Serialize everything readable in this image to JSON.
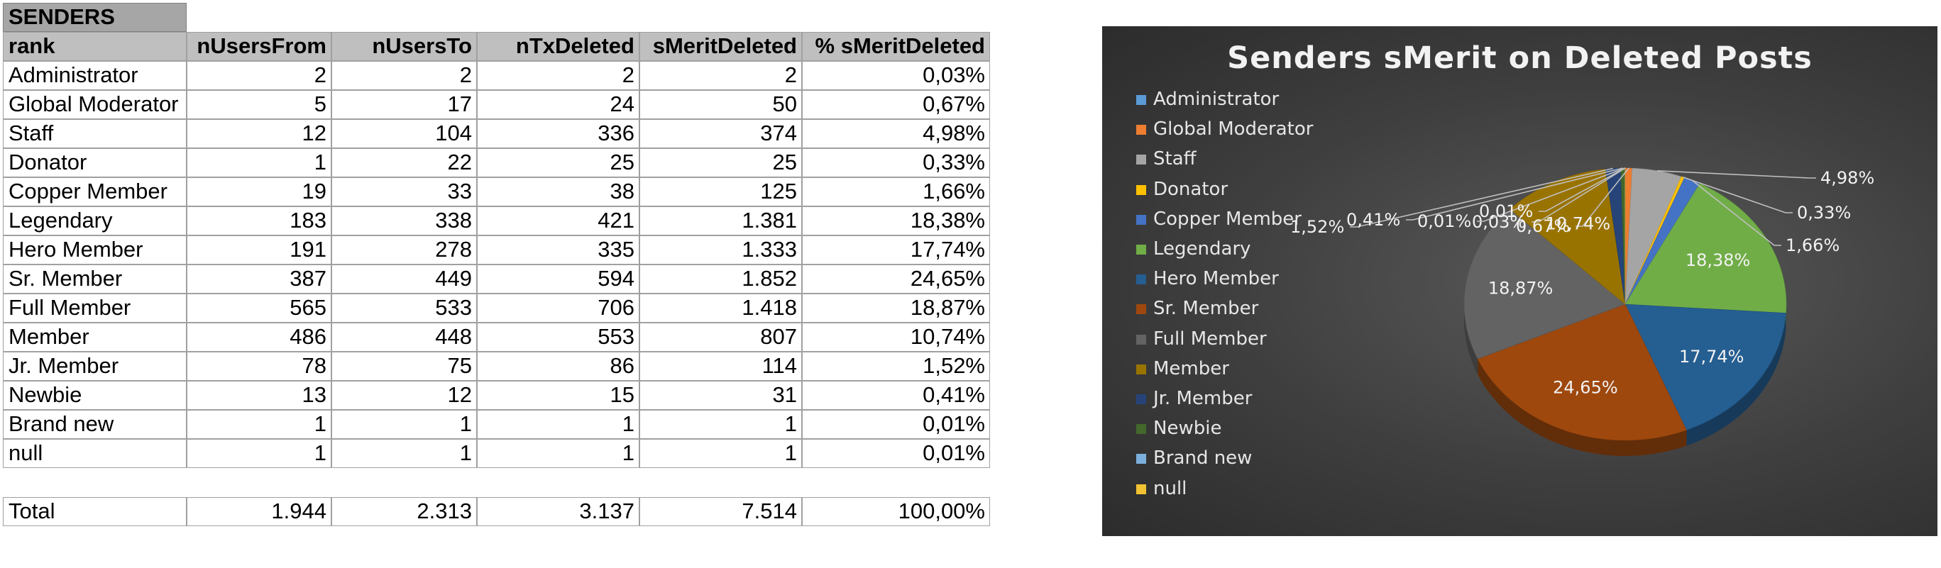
{
  "table": {
    "section_label": "SENDERS",
    "headers": [
      "rank",
      "nUsersFrom",
      "nUsersTo",
      "nTxDeleted",
      "sMeritDeleted",
      "% sMeritDeleted"
    ],
    "rows": [
      [
        "Administrator",
        "2",
        "2",
        "2",
        "2",
        "0,03%"
      ],
      [
        "Global Moderator",
        "5",
        "17",
        "24",
        "50",
        "0,67%"
      ],
      [
        "Staff",
        "12",
        "104",
        "336",
        "374",
        "4,98%"
      ],
      [
        "Donator",
        "1",
        "22",
        "25",
        "25",
        "0,33%"
      ],
      [
        "Copper Member",
        "19",
        "33",
        "38",
        "125",
        "1,66%"
      ],
      [
        "Legendary",
        "183",
        "338",
        "421",
        "1.381",
        "18,38%"
      ],
      [
        "Hero Member",
        "191",
        "278",
        "335",
        "1.333",
        "17,74%"
      ],
      [
        "Sr. Member",
        "387",
        "449",
        "594",
        "1.852",
        "24,65%"
      ],
      [
        "Full Member",
        "565",
        "533",
        "706",
        "1.418",
        "18,87%"
      ],
      [
        "Member",
        "486",
        "448",
        "553",
        "807",
        "10,74%"
      ],
      [
        "Jr. Member",
        "78",
        "75",
        "86",
        "114",
        "1,52%"
      ],
      [
        "Newbie",
        "13",
        "12",
        "15",
        "31",
        "0,41%"
      ],
      [
        "Brand new",
        "1",
        "1",
        "1",
        "1",
        "0,01%"
      ],
      [
        "null",
        "1",
        "1",
        "1",
        "1",
        "0,01%"
      ]
    ],
    "total": [
      "Total",
      "1.944",
      "2.313",
      "3.137",
      "7.514",
      "100,00%"
    ]
  },
  "chart_data": {
    "type": "pie",
    "title": "Senders sMerit on Deleted Posts",
    "legend_position": "left",
    "categories": [
      "Administrator",
      "Global Moderator",
      "Staff",
      "Donator",
      "Copper Member",
      "Legendary",
      "Hero Member",
      "Sr. Member",
      "Full Member",
      "Member",
      "Jr. Member",
      "Newbie",
      "Brand new",
      "null"
    ],
    "values": [
      2,
      50,
      374,
      25,
      125,
      1381,
      1333,
      1852,
      1418,
      807,
      114,
      31,
      1,
      1
    ],
    "labels": [
      "0,03%",
      "0,67%",
      "4,98%",
      "0,33%",
      "1,66%",
      "18,38%",
      "17,74%",
      "24,65%",
      "18,87%",
      "10,74%",
      "1,52%",
      "0,41%",
      "0,01%",
      "0,01%"
    ],
    "colors": [
      "#5b9bd5",
      "#ed7d31",
      "#a5a5a5",
      "#ffc000",
      "#4472c4",
      "#70ad47",
      "#255e91",
      "#9e480e",
      "#636363",
      "#997300",
      "#264478",
      "#43682b",
      "#7cafdd",
      "#f1c232"
    ]
  }
}
